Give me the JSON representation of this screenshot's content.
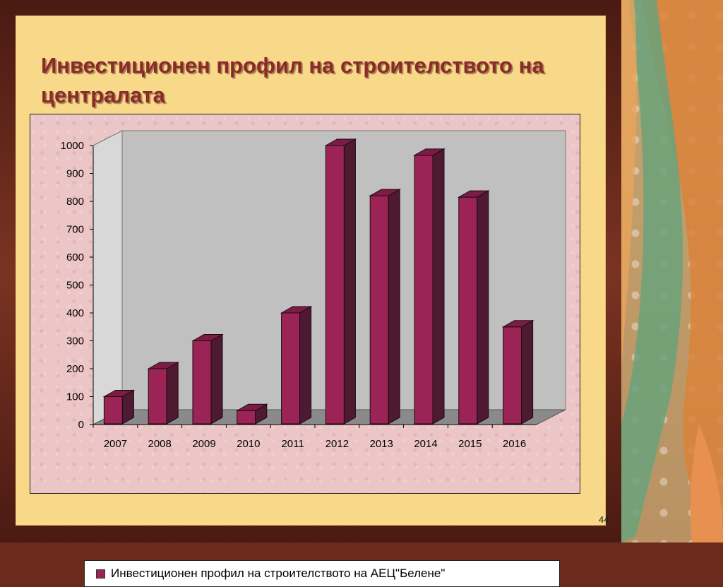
{
  "slide": {
    "title": "Инвестиционен профил на строителството на централата",
    "page_number": "44"
  },
  "colors": {
    "bar_front": "#9b2356",
    "bar_side": "#4e1a32",
    "bar_top": "#7c1c45",
    "back_wall": "#c0c0c0",
    "floor": "#8a8a8a",
    "title": "#8a2a2a"
  },
  "decor": {
    "icon": "floral-ribbon-icon"
  },
  "chart_data": {
    "type": "bar",
    "style": "3d-column",
    "categories": [
      "2007",
      "2008",
      "2009",
      "2010",
      "2011",
      "2012",
      "2013",
      "2014",
      "2015",
      "2016"
    ],
    "series": [
      {
        "name": "Инвестиционен профил на строителството на АЕЦ\"Белене\"",
        "values": [
          100,
          200,
          300,
          50,
          400,
          1000,
          820,
          965,
          815,
          350
        ]
      }
    ],
    "title": "",
    "xlabel": "",
    "ylabel": "",
    "ylim": [
      0,
      1000
    ],
    "yticks": [
      "0",
      "100",
      "200",
      "300",
      "400",
      "500",
      "600",
      "700",
      "800",
      "900",
      "1000"
    ],
    "grid": false,
    "legend": "bottom"
  }
}
